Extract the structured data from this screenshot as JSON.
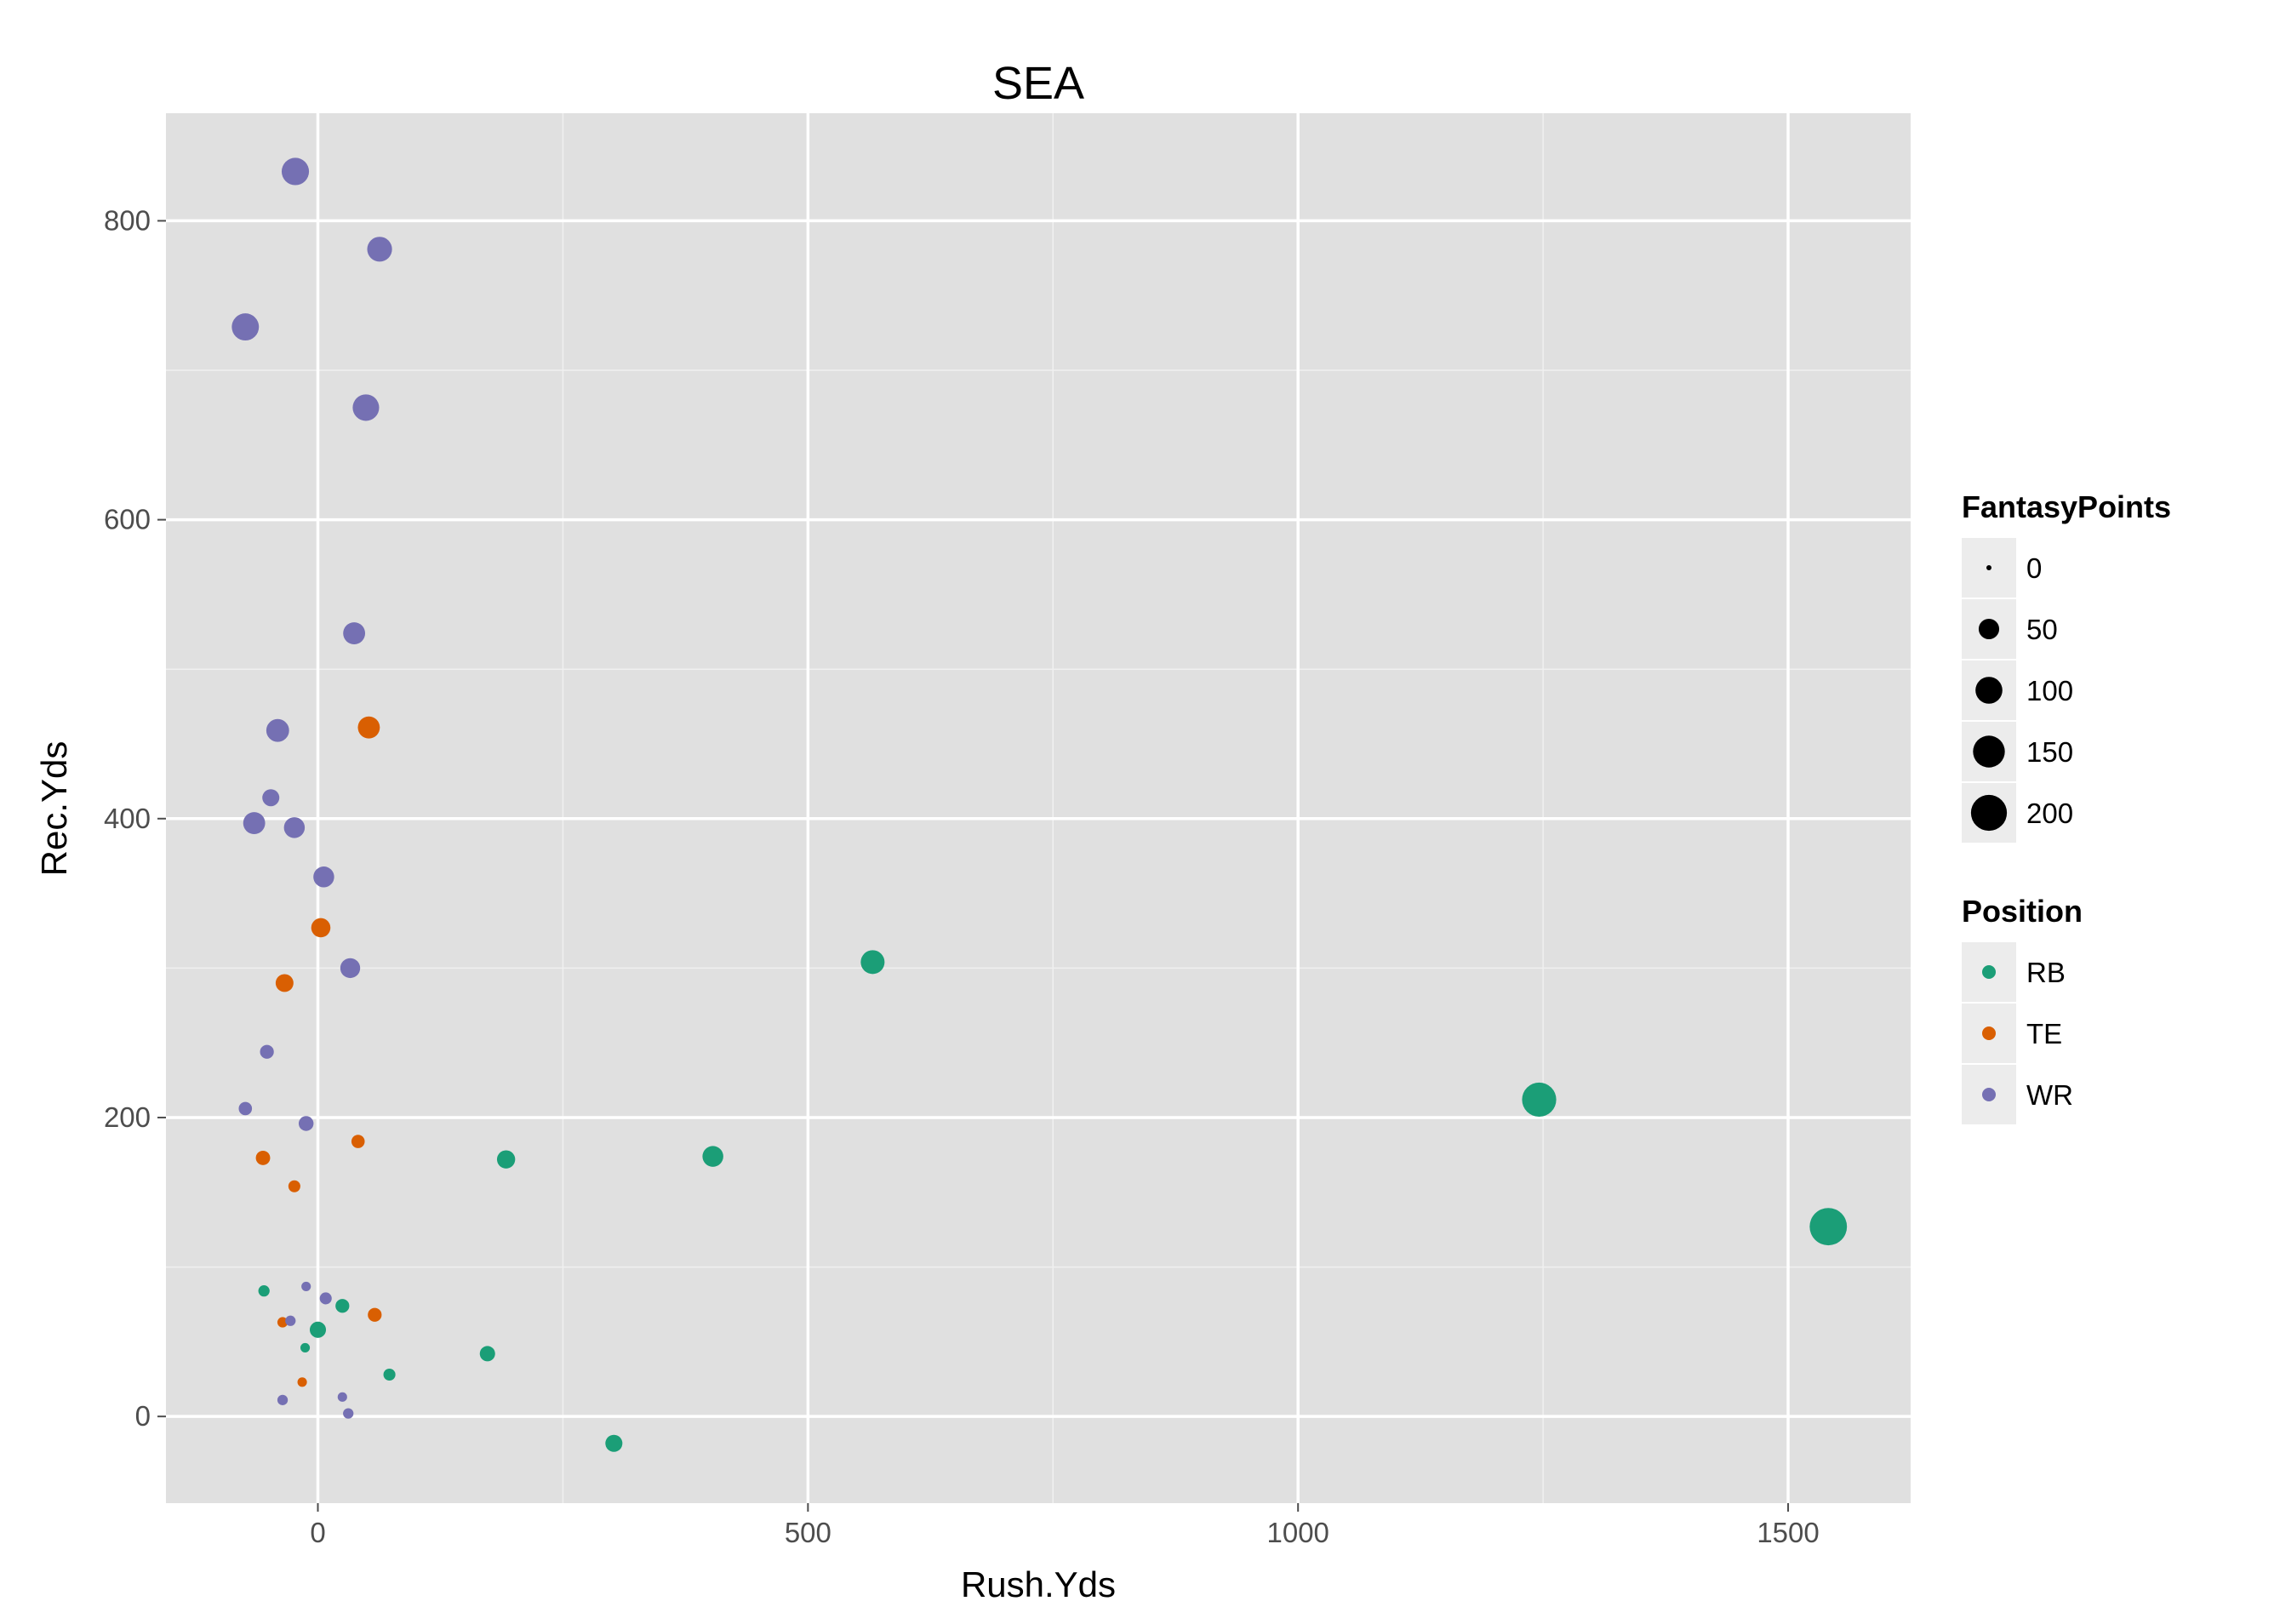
{
  "chart_data": {
    "type": "scatter",
    "title": "SEA",
    "xlabel": "Rush.Yds",
    "ylabel": "Rec.Yds",
    "xlim": [
      -155,
      1625
    ],
    "ylim": [
      -58,
      872
    ],
    "x_ticks": [
      0,
      500,
      1000,
      1500
    ],
    "y_ticks": [
      0,
      200,
      400,
      600,
      800
    ],
    "grid": true,
    "legend_position": "right",
    "size_legend": {
      "title": "FantasyPoints",
      "values": [
        0,
        50,
        100,
        150,
        200
      ]
    },
    "color_legend": {
      "title": "Position",
      "entries": [
        {
          "name": "RB",
          "color": "#1b9e77"
        },
        {
          "name": "TE",
          "color": "#d95f02"
        },
        {
          "name": "WR",
          "color": "#7570b3"
        }
      ]
    },
    "series": [
      {
        "name": "RB",
        "color": "#1b9e77",
        "points": [
          {
            "x": 1541,
            "y": 127,
            "fp": 218
          },
          {
            "x": 1246,
            "y": 212,
            "fp": 178
          },
          {
            "x": 566,
            "y": 304,
            "fp": 74
          },
          {
            "x": 403,
            "y": 174,
            "fp": 52
          },
          {
            "x": 192,
            "y": 172,
            "fp": 36
          },
          {
            "x": 173,
            "y": 42,
            "fp": 22
          },
          {
            "x": 302,
            "y": -18,
            "fp": 30
          },
          {
            "x": 0,
            "y": 58,
            "fp": 26
          },
          {
            "x": 25,
            "y": 74,
            "fp": 16
          },
          {
            "x": 73,
            "y": 28,
            "fp": 10
          },
          {
            "x": -55,
            "y": 84,
            "fp": 8
          },
          {
            "x": -13,
            "y": 46,
            "fp": 4
          }
        ]
      },
      {
        "name": "TE",
        "color": "#d95f02",
        "points": [
          {
            "x": 52,
            "y": 461,
            "fp": 60
          },
          {
            "x": 3,
            "y": 327,
            "fp": 42
          },
          {
            "x": -34,
            "y": 290,
            "fp": 34
          },
          {
            "x": 41,
            "y": 184,
            "fp": 14
          },
          {
            "x": -56,
            "y": 173,
            "fp": 18
          },
          {
            "x": -24,
            "y": 154,
            "fp": 10
          },
          {
            "x": 58,
            "y": 68,
            "fp": 16
          },
          {
            "x": -36,
            "y": 63,
            "fp": 6
          },
          {
            "x": -16,
            "y": 23,
            "fp": 4
          }
        ]
      },
      {
        "name": "WR",
        "color": "#7570b3",
        "points": [
          {
            "x": -23,
            "y": 833,
            "fp": 104
          },
          {
            "x": 63,
            "y": 781,
            "fp": 82
          },
          {
            "x": -74,
            "y": 729,
            "fp": 102
          },
          {
            "x": 49,
            "y": 675,
            "fp": 96
          },
          {
            "x": 37,
            "y": 524,
            "fp": 60
          },
          {
            "x": -41,
            "y": 459,
            "fp": 66
          },
          {
            "x": -48,
            "y": 414,
            "fp": 30
          },
          {
            "x": -65,
            "y": 397,
            "fp": 60
          },
          {
            "x": -24,
            "y": 394,
            "fp": 52
          },
          {
            "x": 6,
            "y": 361,
            "fp": 52
          },
          {
            "x": 33,
            "y": 300,
            "fp": 46
          },
          {
            "x": -52,
            "y": 244,
            "fp": 16
          },
          {
            "x": -74,
            "y": 206,
            "fp": 14
          },
          {
            "x": -12,
            "y": 196,
            "fp": 20
          },
          {
            "x": -12,
            "y": 87,
            "fp": 4
          },
          {
            "x": 8,
            "y": 79,
            "fp": 10
          },
          {
            "x": -28,
            "y": 64,
            "fp": 6
          },
          {
            "x": -36,
            "y": 11,
            "fp": 6
          },
          {
            "x": 25,
            "y": 13,
            "fp": 4
          },
          {
            "x": 31,
            "y": 2,
            "fp": 6
          }
        ]
      }
    ]
  }
}
